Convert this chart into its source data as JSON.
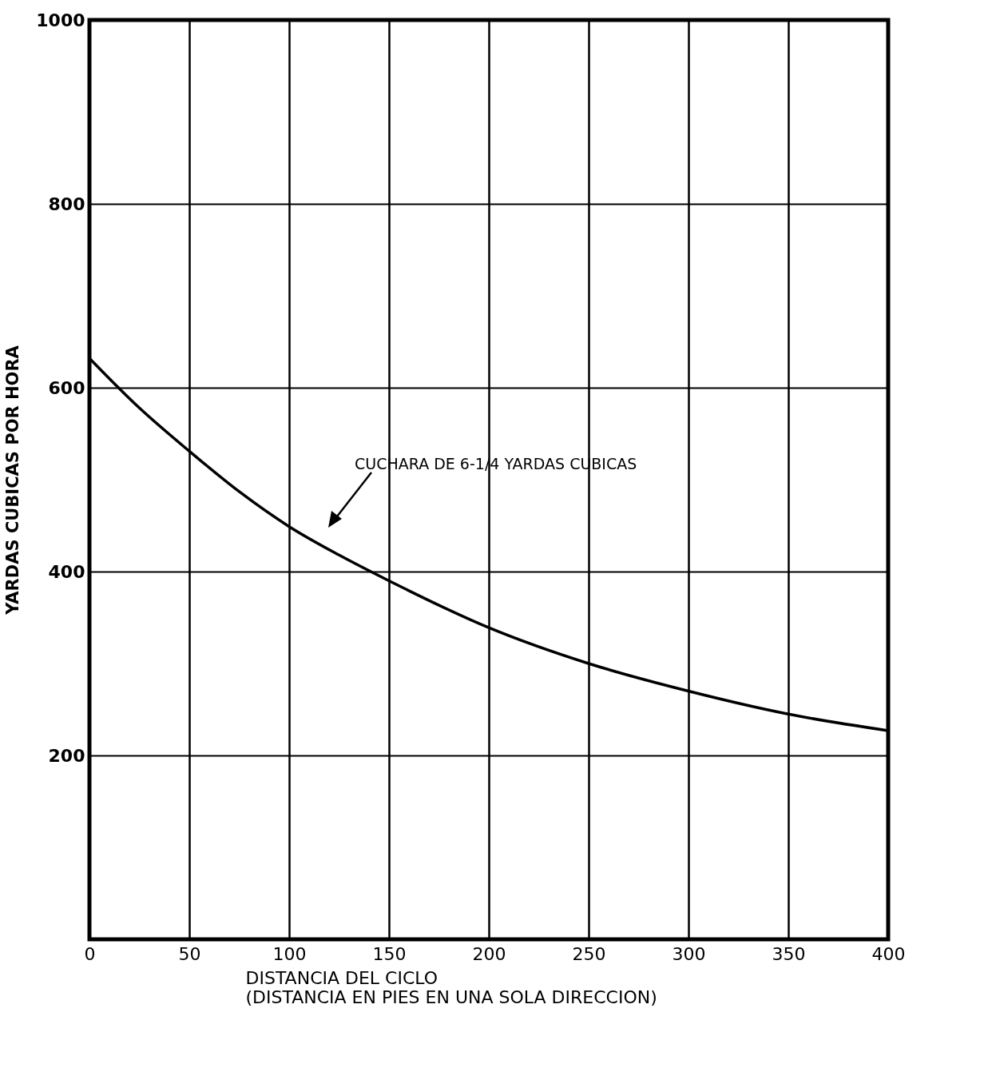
{
  "chart_data": {
    "type": "line",
    "xlabel": "DISTANCIA DEL CICLO\n(DISTANCIA EN PIES EN UNA SOLA DIRECCION)",
    "ylabel": "YARDAS CUBICAS POR HORA",
    "x": [
      0,
      25,
      50,
      75,
      100,
      125,
      150,
      200,
      250,
      300,
      350,
      400
    ],
    "series": [
      {
        "color": "#000000",
        "values": [
          632,
          578,
          531,
          487,
          449,
          418,
          390,
          339,
          300,
          270,
          245,
          227
        ]
      }
    ],
    "xlim": [
      0,
      400
    ],
    "xticks": [
      0,
      50,
      100,
      150,
      200,
      250,
      300,
      350,
      400
    ],
    "ylim": [
      0,
      1000
    ],
    "yticks": [
      200,
      400,
      600,
      800,
      1000
    ],
    "grid": true,
    "marker": "none",
    "line_style": "solid",
    "annotations": [
      "CUCHARA DE 6-1/4 YARDAS CUBICAS"
    ]
  }
}
